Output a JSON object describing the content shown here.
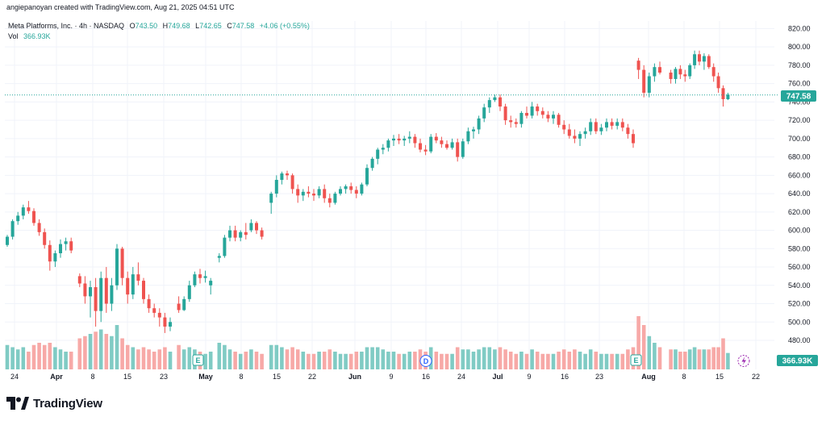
{
  "header": {
    "text": "angiepanoyan created with TradingView.com, Aug 21, 2025 04:51 UTC"
  },
  "legend": {
    "symbol": "Meta Platforms, Inc. · 4h · NASDAQ",
    "o_label": "O",
    "o_value": "743.50",
    "h_label": "H",
    "h_value": "749.68",
    "l_label": "L",
    "l_value": "742.65",
    "c_label": "C",
    "c_value": "747.58",
    "change": "+4.06 (+0.55%)",
    "vol_label": "Vol",
    "vol_value": "366.93K"
  },
  "footer": {
    "brand": "TradingView"
  },
  "colors": {
    "up": "#26a69a",
    "down": "#ef5350",
    "vol_up": "#80cbc4",
    "vol_down": "#f7a9a7",
    "grid": "#f0f3fa"
  },
  "chart_data": {
    "type": "candlestick",
    "title": "Meta Platforms, Inc. · 4h · NASDAQ",
    "ylim": [
      470,
      830
    ],
    "yticks": [
      480,
      500,
      520,
      540,
      560,
      580,
      600,
      620,
      640,
      660,
      680,
      700,
      720,
      740,
      760,
      780,
      800,
      820
    ],
    "last_price": "747.58",
    "volume_last": "366.93K",
    "x_labels": [
      {
        "text": "24",
        "bold": false
      },
      {
        "text": "Apr",
        "bold": true
      },
      {
        "text": "8",
        "bold": false
      },
      {
        "text": "15",
        "bold": false
      },
      {
        "text": "23",
        "bold": false
      },
      {
        "text": "May",
        "bold": true
      },
      {
        "text": "8",
        "bold": false
      },
      {
        "text": "15",
        "bold": false
      },
      {
        "text": "22",
        "bold": false
      },
      {
        "text": "Jun",
        "bold": true
      },
      {
        "text": "9",
        "bold": false
      },
      {
        "text": "16",
        "bold": false
      },
      {
        "text": "24",
        "bold": false
      },
      {
        "text": "Jul",
        "bold": true
      },
      {
        "text": "9",
        "bold": false
      },
      {
        "text": "16",
        "bold": false
      },
      {
        "text": "23",
        "bold": false
      },
      {
        "text": "Aug",
        "bold": true
      },
      {
        "text": "8",
        "bold": false
      },
      {
        "text": "15",
        "bold": false
      },
      {
        "text": "22",
        "bold": false
      }
    ],
    "candles": [
      [
        584,
        595,
        582,
        593,
        0.55
      ],
      [
        593,
        612,
        590,
        610,
        0.5
      ],
      [
        610,
        620,
        606,
        616,
        0.45
      ],
      [
        616,
        628,
        612,
        625,
        0.5
      ],
      [
        625,
        632,
        618,
        621,
        0.4
      ],
      [
        621,
        624,
        605,
        608,
        0.55
      ],
      [
        608,
        612,
        594,
        598,
        0.6
      ],
      [
        598,
        602,
        580,
        584,
        0.55
      ],
      [
        584,
        589,
        556,
        566,
        0.6
      ],
      [
        566,
        578,
        560,
        575,
        0.5
      ],
      [
        575,
        590,
        570,
        585,
        0.45
      ],
      [
        585,
        592,
        578,
        588,
        0.4
      ],
      [
        588,
        592,
        575,
        578,
        0.4
      ],
      [
        550,
        553,
        538,
        542,
        0.7
      ],
      [
        542,
        550,
        520,
        528,
        0.75
      ],
      [
        528,
        545,
        505,
        538,
        0.8
      ],
      [
        538,
        548,
        495,
        512,
        0.85
      ],
      [
        512,
        555,
        500,
        548,
        0.9
      ],
      [
        548,
        560,
        510,
        520,
        0.8
      ],
      [
        520,
        548,
        512,
        540,
        0.75
      ],
      [
        540,
        585,
        535,
        580,
        1.0
      ],
      [
        580,
        582,
        540,
        548,
        0.7
      ],
      [
        548,
        555,
        520,
        530,
        0.55
      ],
      [
        530,
        560,
        525,
        552,
        0.5
      ],
      [
        552,
        565,
        540,
        545,
        0.45
      ],
      [
        545,
        548,
        520,
        525,
        0.5
      ],
      [
        525,
        530,
        510,
        515,
        0.45
      ],
      [
        515,
        520,
        505,
        510,
        0.4
      ],
      [
        510,
        515,
        495,
        505,
        0.45
      ],
      [
        505,
        510,
        488,
        495,
        0.5
      ],
      [
        495,
        505,
        490,
        500,
        0.4
      ],
      [
        520,
        528,
        510,
        513,
        0.55
      ],
      [
        513,
        528,
        512,
        525,
        0.45
      ],
      [
        525,
        545,
        522,
        540,
        0.5
      ],
      [
        540,
        555,
        538,
        552,
        0.45
      ],
      [
        552,
        558,
        542,
        548,
        0.4
      ],
      [
        548,
        556,
        543,
        550,
        0.35
      ],
      [
        540,
        548,
        530,
        545,
        0.4
      ],
      [
        570,
        575,
        565,
        572,
        0.6
      ],
      [
        572,
        595,
        570,
        592,
        0.55
      ],
      [
        592,
        605,
        588,
        600,
        0.45
      ],
      [
        600,
        605,
        588,
        592,
        0.4
      ],
      [
        592,
        600,
        588,
        598,
        0.35
      ],
      [
        598,
        608,
        590,
        595,
        0.4
      ],
      [
        600,
        612,
        598,
        608,
        0.45
      ],
      [
        608,
        610,
        596,
        600,
        0.4
      ],
      [
        600,
        603,
        590,
        593,
        0.35
      ],
      [
        630,
        642,
        618,
        640,
        0.55
      ],
      [
        640,
        660,
        636,
        655,
        0.55
      ],
      [
        655,
        664,
        650,
        662,
        0.5
      ],
      [
        662,
        665,
        655,
        660,
        0.45
      ],
      [
        660,
        662,
        640,
        645,
        0.5
      ],
      [
        645,
        650,
        630,
        638,
        0.45
      ],
      [
        638,
        645,
        632,
        642,
        0.4
      ],
      [
        642,
        648,
        636,
        640,
        0.35
      ],
      [
        640,
        645,
        632,
        638,
        0.35
      ],
      [
        638,
        648,
        635,
        645,
        0.4
      ],
      [
        645,
        650,
        630,
        635,
        0.4
      ],
      [
        635,
        640,
        625,
        630,
        0.45
      ],
      [
        630,
        642,
        628,
        640,
        0.4
      ],
      [
        640,
        648,
        638,
        645,
        0.35
      ],
      [
        645,
        650,
        640,
        648,
        0.35
      ],
      [
        648,
        652,
        640,
        644,
        0.35
      ],
      [
        644,
        648,
        635,
        640,
        0.4
      ],
      [
        640,
        652,
        638,
        650,
        0.4
      ],
      [
        650,
        672,
        648,
        668,
        0.5
      ],
      [
        668,
        680,
        665,
        678,
        0.5
      ],
      [
        678,
        690,
        672,
        688,
        0.5
      ],
      [
        688,
        694,
        683,
        690,
        0.45
      ],
      [
        690,
        700,
        686,
        698,
        0.4
      ],
      [
        698,
        704,
        692,
        700,
        0.4
      ],
      [
        700,
        705,
        694,
        698,
        0.35
      ],
      [
        698,
        703,
        692,
        700,
        0.35
      ],
      [
        700,
        708,
        695,
        702,
        0.4
      ],
      [
        702,
        705,
        690,
        695,
        0.4
      ],
      [
        695,
        700,
        685,
        688,
        0.45
      ],
      [
        688,
        693,
        682,
        686,
        0.4
      ],
      [
        686,
        705,
        684,
        702,
        0.5
      ],
      [
        702,
        706,
        695,
        698,
        0.4
      ],
      [
        698,
        702,
        690,
        694,
        0.35
      ],
      [
        694,
        698,
        688,
        690,
        0.35
      ],
      [
        690,
        700,
        688,
        696,
        0.35
      ],
      [
        696,
        700,
        675,
        680,
        0.5
      ],
      [
        680,
        700,
        678,
        697,
        0.45
      ],
      [
        697,
        712,
        694,
        708,
        0.45
      ],
      [
        708,
        713,
        700,
        710,
        0.4
      ],
      [
        710,
        725,
        705,
        722,
        0.45
      ],
      [
        722,
        738,
        718,
        734,
        0.5
      ],
      [
        734,
        745,
        728,
        742,
        0.5
      ],
      [
        742,
        748,
        740,
        745,
        0.45
      ],
      [
        745,
        748,
        730,
        735,
        0.5
      ],
      [
        735,
        738,
        715,
        720,
        0.45
      ],
      [
        720,
        725,
        712,
        718,
        0.4
      ],
      [
        718,
        722,
        712,
        716,
        0.35
      ],
      [
        716,
        730,
        712,
        728,
        0.4
      ],
      [
        728,
        735,
        722,
        725,
        0.35
      ],
      [
        725,
        740,
        722,
        735,
        0.45
      ],
      [
        735,
        738,
        725,
        730,
        0.4
      ],
      [
        730,
        734,
        722,
        726,
        0.35
      ],
      [
        726,
        730,
        718,
        722,
        0.35
      ],
      [
        722,
        730,
        716,
        726,
        0.35
      ],
      [
        726,
        728,
        712,
        715,
        0.4
      ],
      [
        715,
        720,
        705,
        710,
        0.45
      ],
      [
        710,
        716,
        700,
        703,
        0.4
      ],
      [
        703,
        710,
        695,
        700,
        0.45
      ],
      [
        700,
        708,
        692,
        705,
        0.4
      ],
      [
        705,
        712,
        700,
        708,
        0.35
      ],
      [
        708,
        722,
        704,
        718,
        0.45
      ],
      [
        718,
        722,
        705,
        708,
        0.4
      ],
      [
        708,
        716,
        704,
        712,
        0.35
      ],
      [
        712,
        722,
        708,
        718,
        0.35
      ],
      [
        718,
        722,
        710,
        714,
        0.35
      ],
      [
        714,
        722,
        710,
        718,
        0.35
      ],
      [
        718,
        722,
        708,
        712,
        0.35
      ],
      [
        712,
        716,
        700,
        705,
        0.45
      ],
      [
        705,
        710,
        690,
        695,
        0.5
      ],
      [
        785,
        788,
        765,
        775,
        1.2
      ],
      [
        775,
        780,
        745,
        750,
        1.0
      ],
      [
        750,
        772,
        745,
        768,
        0.75
      ],
      [
        768,
        782,
        762,
        778,
        0.6
      ],
      [
        778,
        784,
        770,
        772,
        0.5
      ],
      [
        772,
        775,
        760,
        765,
        0.45
      ],
      [
        765,
        778,
        760,
        776,
        0.45
      ],
      [
        776,
        780,
        765,
        770,
        0.4
      ],
      [
        770,
        775,
        762,
        768,
        0.4
      ],
      [
        768,
        782,
        765,
        780,
        0.45
      ],
      [
        780,
        796,
        776,
        792,
        0.5
      ],
      [
        792,
        796,
        780,
        784,
        0.45
      ],
      [
        784,
        793,
        775,
        790,
        0.45
      ],
      [
        790,
        792,
        776,
        778,
        0.45
      ],
      [
        778,
        782,
        762,
        768,
        0.5
      ],
      [
        768,
        772,
        750,
        755,
        0.5
      ],
      [
        755,
        758,
        735,
        743,
        0.7
      ],
      [
        743,
        750,
        742,
        748,
        0.37
      ]
    ]
  }
}
